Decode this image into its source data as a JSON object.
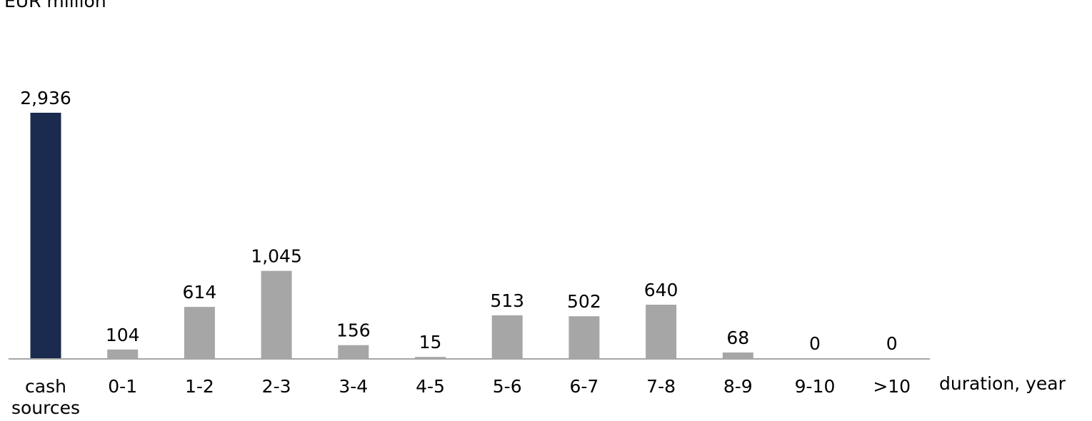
{
  "chart_data": {
    "type": "bar",
    "unit_label": "EUR million",
    "xlabel": "duration, year",
    "categories": [
      "cash\nsources",
      "0-1",
      "1-2",
      "2-3",
      "3-4",
      "4-5",
      "5-6",
      "6-7",
      "7-8",
      "8-9",
      "9-10",
      ">10"
    ],
    "values": [
      2936,
      104,
      614,
      1045,
      156,
      15,
      513,
      502,
      640,
      68,
      0,
      0
    ],
    "value_labels": [
      "2,936",
      "104",
      "614",
      "1,045",
      "156",
      "15",
      "513",
      "502",
      "640",
      "68",
      "0",
      "0"
    ],
    "ylim": [
      0,
      2936
    ],
    "grid": false,
    "colors": {
      "highlight": "#1b2a4f",
      "default": "#a6a6a6",
      "axis": "#a6a6a6"
    },
    "highlight_index": 0
  }
}
